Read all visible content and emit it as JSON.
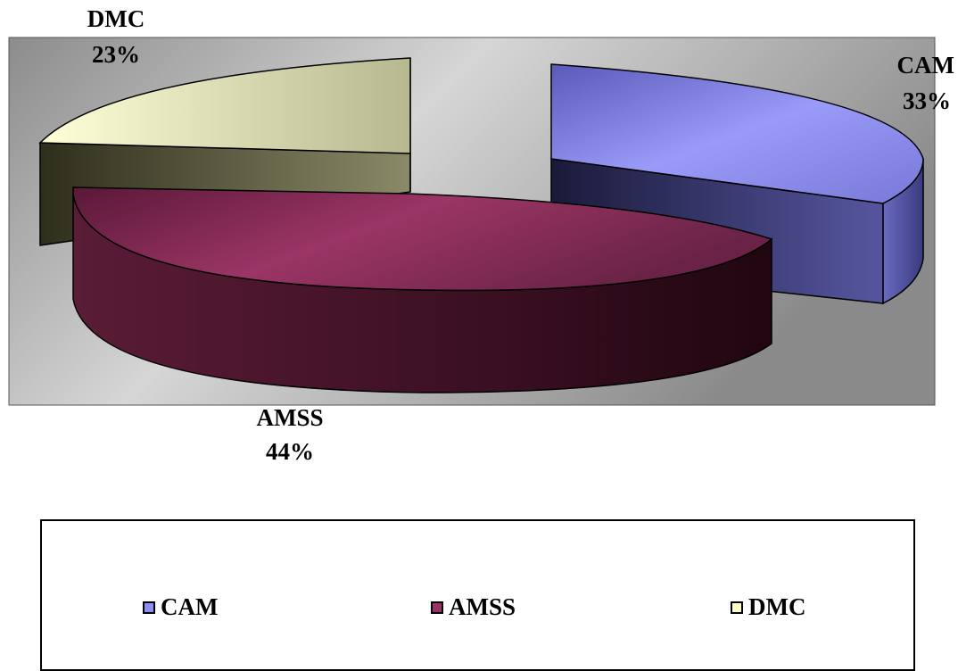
{
  "chart_data": {
    "type": "pie",
    "style": "3d-exploded",
    "slices": [
      {
        "label": "CAM",
        "value": 33,
        "display": "33%",
        "color": "#8f8ff0"
      },
      {
        "label": "AMSS",
        "value": 44,
        "display": "44%",
        "color": "#993366"
      },
      {
        "label": "DMC",
        "value": 23,
        "display": "23%",
        "color": "#ffffcc"
      }
    ],
    "legend": {
      "placement": "bottom",
      "entries": [
        "CAM",
        "AMSS",
        "DMC"
      ]
    },
    "plot_background": "gradient-gray"
  }
}
